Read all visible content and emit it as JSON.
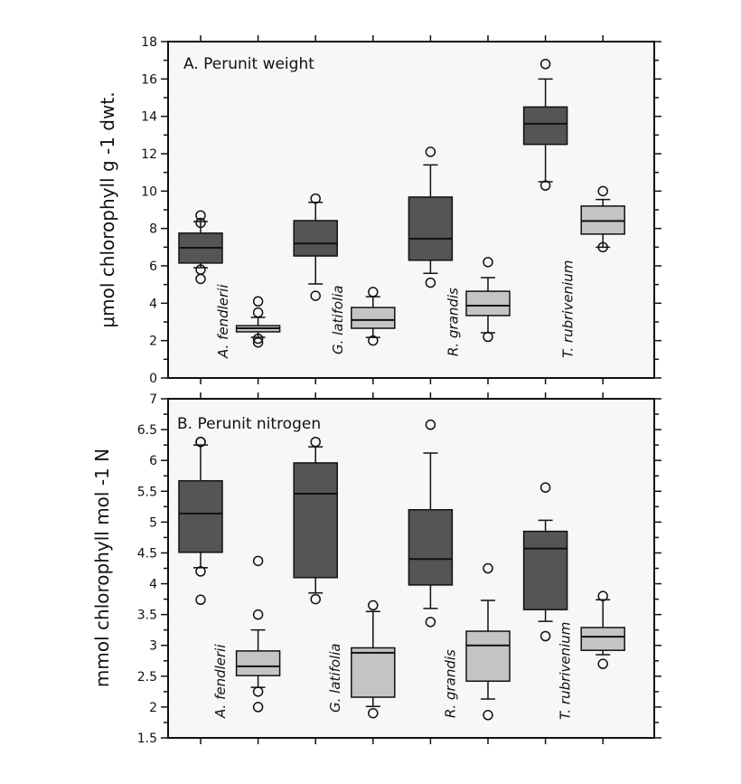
{
  "chart_data": [
    {
      "type": "box",
      "title": "A. Perunit weight",
      "ylabel": "μmol chlorophyll g  -1  dwt.",
      "ylim": [
        0,
        18
      ],
      "yticks": [
        "0",
        "2",
        "4",
        "6",
        "8",
        "10",
        "12",
        "14",
        "16",
        "18"
      ],
      "ytick_values": [
        0,
        2,
        4,
        6,
        8,
        10,
        12,
        14,
        16,
        18
      ],
      "species_labels": [
        "A. fendlerii",
        "G. latifolia",
        "R. grandis",
        "T. rubrivenium"
      ],
      "colors": {
        "dark": "#555555",
        "light": "#c4c4c4"
      },
      "boxes": [
        {
          "species": "A. fendlerii",
          "shade": "dark",
          "whisker_low": 5.9,
          "q1": 6.15,
          "median": 6.97,
          "q3": 7.75,
          "whisker_high": 8.37,
          "outliers": [
            8.7,
            8.3,
            5.8,
            5.3
          ]
        },
        {
          "species": "A. fendlerii",
          "shade": "light",
          "whisker_low": 2.18,
          "q1": 2.47,
          "median": 2.66,
          "q3": 2.8,
          "whisker_high": 3.24,
          "outliers": [
            4.1,
            3.5,
            2.1,
            1.9
          ]
        },
        {
          "species": "G. latifolia",
          "shade": "dark",
          "whisker_low": 5.03,
          "q1": 6.53,
          "median": 7.2,
          "q3": 8.42,
          "whisker_high": 9.4,
          "outliers": [
            9.6,
            4.4
          ]
        },
        {
          "species": "G. latifolia",
          "shade": "light",
          "whisker_low": 2.17,
          "q1": 2.66,
          "median": 3.1,
          "q3": 3.77,
          "whisker_high": 4.35,
          "outliers": [
            4.6,
            2.0
          ]
        },
        {
          "species": "R. grandis",
          "shade": "dark",
          "whisker_low": 5.6,
          "q1": 6.3,
          "median": 7.45,
          "q3": 9.68,
          "whisker_high": 11.4,
          "outliers": [
            12.1,
            5.1
          ]
        },
        {
          "species": "R. grandis",
          "shade": "light",
          "whisker_low": 2.42,
          "q1": 3.34,
          "median": 3.87,
          "q3": 4.64,
          "whisker_high": 5.37,
          "outliers": [
            6.2,
            2.2
          ]
        },
        {
          "species": "T. rubrivenium",
          "shade": "dark",
          "whisker_low": 10.5,
          "q1": 12.5,
          "median": 13.6,
          "q3": 14.5,
          "whisker_high": 16.0,
          "outliers": [
            16.8,
            10.3
          ]
        },
        {
          "species": "T. rubrivenium",
          "shade": "light",
          "whisker_low": 7.0,
          "q1": 7.7,
          "median": 8.4,
          "q3": 9.2,
          "whisker_high": 9.55,
          "outliers": [
            10.0,
            7.0
          ]
        }
      ]
    },
    {
      "type": "box",
      "title": "B. Perunit nitrogen",
      "ylabel": "mmol chlorophyll mol  -1  N",
      "ylim": [
        1.5,
        7
      ],
      "yticks": [
        "1.5",
        "2",
        "2.5",
        "3",
        "3.5",
        "4",
        "4.5",
        "5",
        "5.5",
        "6",
        "6.5",
        "7"
      ],
      "ytick_values": [
        1.5,
        2,
        2.5,
        3,
        3.5,
        4,
        4.5,
        5,
        5.5,
        6,
        6.5,
        7
      ],
      "species_labels": [
        "A. fendlerii",
        "G. latifolia",
        "R. grandis",
        "T. rubrivenium"
      ],
      "colors": {
        "dark": "#555555",
        "light": "#c4c4c4"
      },
      "boxes": [
        {
          "species": "A. fendlerii",
          "shade": "dark",
          "whisker_low": 4.26,
          "q1": 4.51,
          "median": 5.14,
          "q3": 5.67,
          "whisker_high": 6.25,
          "outliers": [
            6.3,
            6.3,
            4.2,
            3.74
          ]
        },
        {
          "species": "A. fendlerii",
          "shade": "light",
          "whisker_low": 2.32,
          "q1": 2.51,
          "median": 2.66,
          "q3": 2.91,
          "whisker_high": 3.25,
          "outliers": [
            4.37,
            3.5,
            2.25,
            2.0
          ]
        },
        {
          "species": "G. latifolia",
          "shade": "dark",
          "whisker_low": 3.85,
          "q1": 4.1,
          "median": 5.46,
          "q3": 5.96,
          "whisker_high": 6.22,
          "outliers": [
            6.3,
            3.75
          ]
        },
        {
          "species": "G. latifolia",
          "shade": "light",
          "whisker_low": 2.01,
          "q1": 2.16,
          "median": 2.88,
          "q3": 2.96,
          "whisker_high": 3.55,
          "outliers": [
            3.65,
            1.9
          ]
        },
        {
          "species": "R. grandis",
          "shade": "dark",
          "whisker_low": 3.6,
          "q1": 3.98,
          "median": 4.4,
          "q3": 5.2,
          "whisker_high": 6.12,
          "outliers": [
            6.58,
            3.38
          ]
        },
        {
          "species": "R. grandis",
          "shade": "light",
          "whisker_low": 2.13,
          "q1": 2.42,
          "median": 3.0,
          "q3": 3.23,
          "whisker_high": 3.73,
          "outliers": [
            4.25,
            1.87
          ]
        },
        {
          "species": "T. rubrivenium",
          "shade": "dark",
          "whisker_low": 3.39,
          "q1": 3.58,
          "median": 4.57,
          "q3": 4.85,
          "whisker_high": 5.03,
          "outliers": [
            5.56,
            3.15
          ]
        },
        {
          "species": "T. rubrivenium",
          "shade": "light",
          "whisker_low": 2.85,
          "q1": 2.92,
          "median": 3.14,
          "q3": 3.29,
          "whisker_high": 3.74,
          "outliers": [
            3.8,
            2.7
          ]
        }
      ]
    }
  ]
}
